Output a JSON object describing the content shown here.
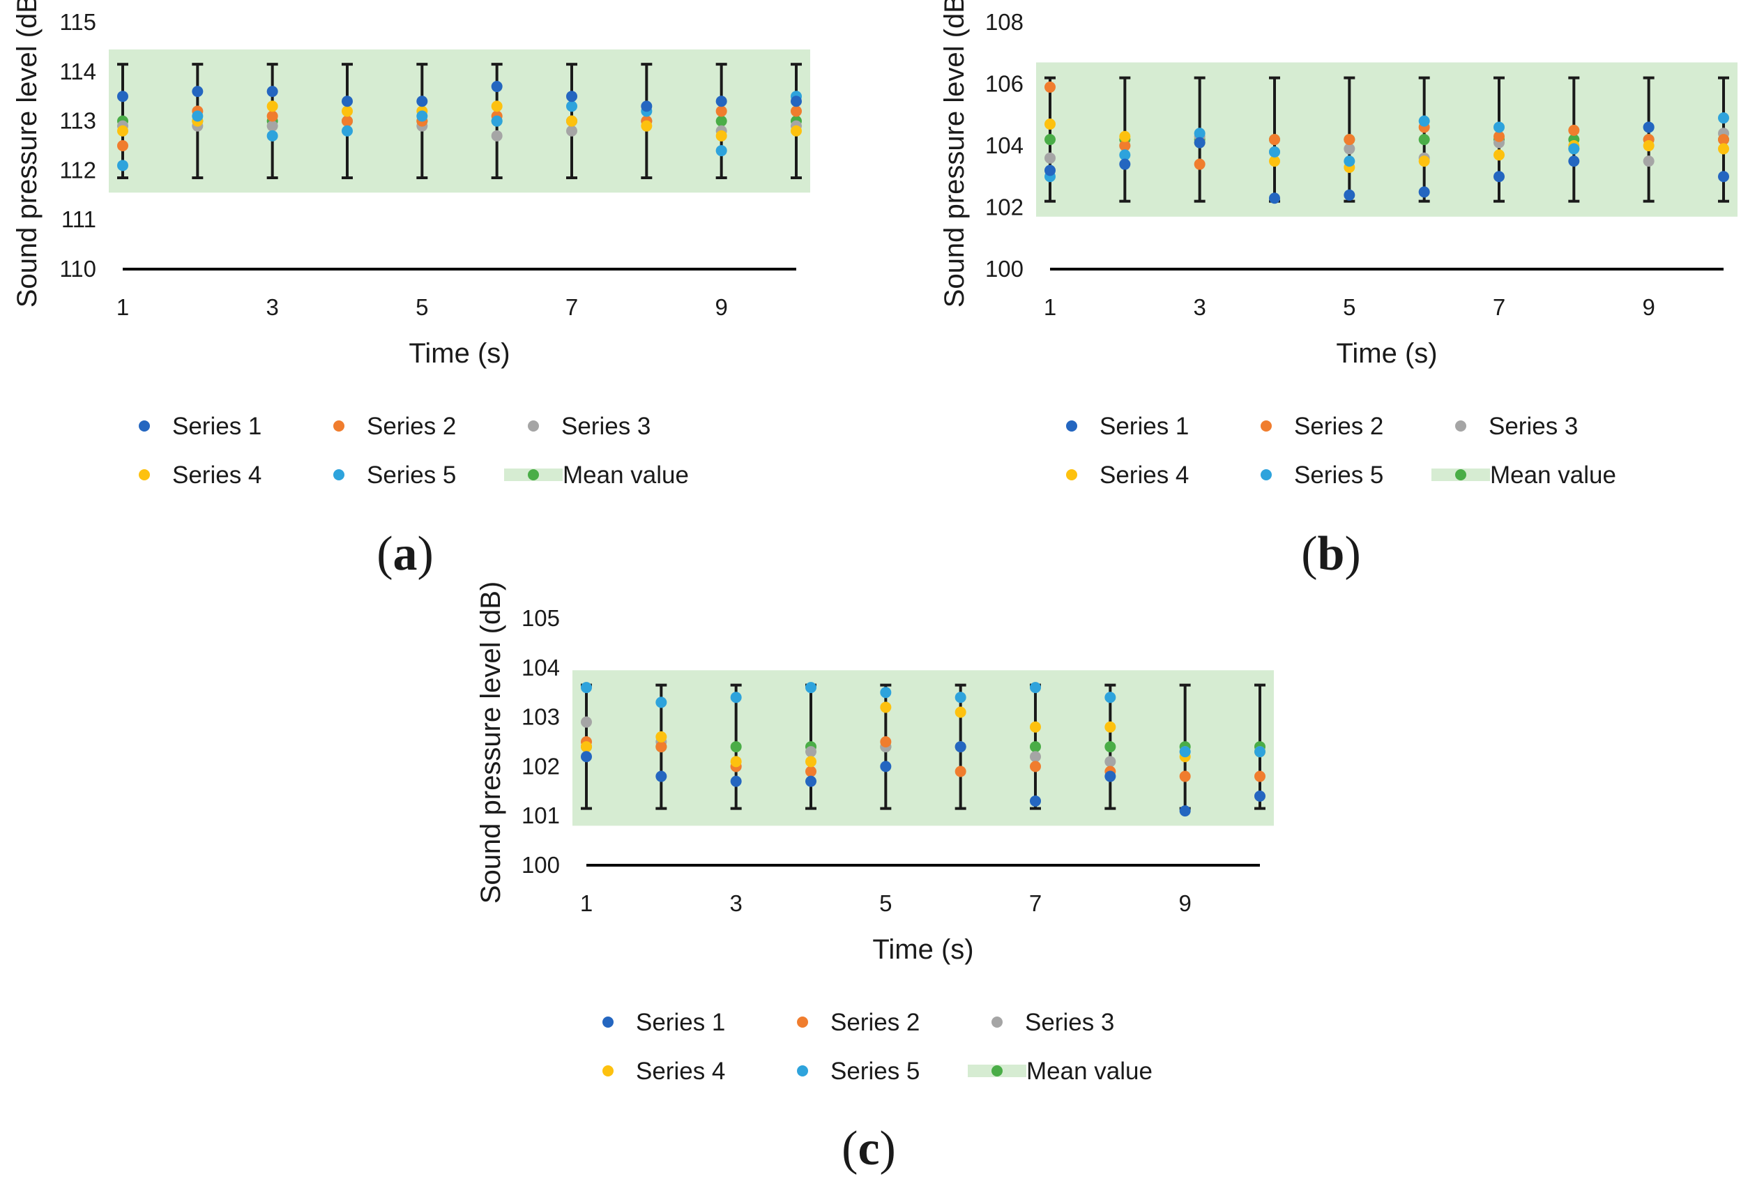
{
  "chart_data": [
    {
      "type": "scatter",
      "panel_label": "a",
      "xlabel": "Time (s)",
      "ylabel": "Sound pressure level (dB)",
      "ylim": [
        110,
        115
      ],
      "yticks": [
        110,
        111,
        112,
        113,
        114,
        115
      ],
      "xlim": [
        1,
        10
      ],
      "xticks": [
        1,
        3,
        5,
        7,
        9
      ],
      "band": [
        111.55,
        114.45
      ],
      "error_bar": {
        "low": 111.85,
        "high": 114.15
      },
      "x": [
        1,
        2,
        3,
        4,
        5,
        6,
        7,
        8,
        9,
        10
      ],
      "series": [
        {
          "name": "Series 1",
          "values": [
            113.5,
            113.6,
            113.6,
            113.4,
            113.4,
            113.7,
            113.5,
            113.3,
            113.4,
            113.4
          ]
        },
        {
          "name": "Series 2",
          "values": [
            112.5,
            113.2,
            113.1,
            113.0,
            113.0,
            113.1,
            113.0,
            113.0,
            113.2,
            113.2
          ]
        },
        {
          "name": "Series 3",
          "values": [
            112.9,
            112.9,
            112.9,
            113.0,
            112.9,
            112.7,
            112.8,
            113.0,
            112.8,
            112.9
          ]
        },
        {
          "name": "Series 4",
          "values": [
            112.8,
            113.0,
            113.3,
            113.2,
            113.2,
            113.3,
            113.0,
            112.9,
            112.7,
            112.8
          ]
        },
        {
          "name": "Series 5",
          "values": [
            112.1,
            113.1,
            112.7,
            112.8,
            113.1,
            113.0,
            113.3,
            113.2,
            112.4,
            113.5
          ]
        },
        {
          "name": "Mean value",
          "values": [
            113.0,
            113.0,
            113.0,
            113.0,
            113.0,
            113.0,
            113.0,
            113.0,
            113.0,
            113.0
          ]
        }
      ]
    },
    {
      "type": "scatter",
      "panel_label": "b",
      "xlabel": "Time (s)",
      "ylabel": "Sound pressure level (dB)",
      "ylim": [
        100,
        108
      ],
      "yticks": [
        100,
        102,
        104,
        106,
        108
      ],
      "xlim": [
        1,
        10
      ],
      "xticks": [
        1,
        3,
        5,
        7,
        9
      ],
      "band": [
        101.7,
        106.7
      ],
      "error_bar": {
        "low": 102.2,
        "high": 106.2
      },
      "x": [
        1,
        2,
        3,
        4,
        5,
        6,
        7,
        8,
        9,
        10
      ],
      "series": [
        {
          "name": "Series 1",
          "values": [
            103.2,
            103.4,
            104.1,
            102.3,
            102.4,
            102.5,
            103.0,
            103.5,
            104.6,
            103.0
          ]
        },
        {
          "name": "Series 2",
          "values": [
            105.9,
            104.0,
            103.4,
            104.2,
            104.2,
            104.6,
            104.3,
            104.5,
            104.2,
            104.2
          ]
        },
        {
          "name": "Series 3",
          "values": [
            103.6,
            104.0,
            104.3,
            103.8,
            103.9,
            103.6,
            104.1,
            103.9,
            103.5,
            104.4
          ]
        },
        {
          "name": "Series 4",
          "values": [
            104.7,
            104.3,
            104.1,
            103.5,
            103.3,
            103.5,
            103.7,
            104.0,
            104.0,
            103.9
          ]
        },
        {
          "name": "Series 5",
          "values": [
            103.0,
            103.7,
            104.4,
            103.8,
            103.5,
            104.8,
            104.6,
            103.9,
            104.6,
            104.9
          ]
        },
        {
          "name": "Mean value",
          "values": [
            104.2,
            104.2,
            104.2,
            104.2,
            104.2,
            104.2,
            104.2,
            104.2,
            104.2,
            104.2
          ]
        }
      ]
    },
    {
      "type": "scatter",
      "panel_label": "c",
      "xlabel": "Time (s)",
      "ylabel": "Sound pressure level (dB)",
      "ylim": [
        100,
        105
      ],
      "yticks": [
        100,
        101,
        102,
        103,
        104,
        105
      ],
      "xlim": [
        1,
        10
      ],
      "xticks": [
        1,
        3,
        5,
        7,
        9
      ],
      "band": [
        100.8,
        103.95
      ],
      "error_bar": {
        "low": 101.15,
        "high": 103.65
      },
      "x": [
        1,
        2,
        3,
        4,
        5,
        6,
        7,
        8,
        9,
        10
      ],
      "series": [
        {
          "name": "Series 1",
          "values": [
            102.2,
            101.8,
            101.7,
            101.7,
            102.0,
            102.4,
            101.3,
            101.8,
            101.1,
            101.4
          ]
        },
        {
          "name": "Series 2",
          "values": [
            102.5,
            102.4,
            102.0,
            101.9,
            102.5,
            101.9,
            102.0,
            101.9,
            101.8,
            101.8
          ]
        },
        {
          "name": "Series 3",
          "values": [
            102.9,
            102.5,
            102.0,
            102.3,
            102.4,
            102.4,
            102.2,
            102.1,
            102.3,
            102.3
          ]
        },
        {
          "name": "Series 4",
          "values": [
            102.4,
            102.6,
            102.1,
            102.1,
            103.2,
            103.1,
            102.8,
            102.8,
            102.2,
            102.3
          ]
        },
        {
          "name": "Series 5",
          "values": [
            103.6,
            103.3,
            103.4,
            103.6,
            103.5,
            103.4,
            103.6,
            103.4,
            102.3,
            102.3
          ]
        },
        {
          "name": "Mean value",
          "values": [
            102.4,
            102.4,
            102.4,
            102.4,
            102.4,
            102.4,
            102.4,
            102.4,
            102.4,
            102.4
          ]
        }
      ]
    }
  ],
  "colors": {
    "Series 1": "#2466c0",
    "Series 2": "#f07d2e",
    "Series 3": "#a5a5a5",
    "Series 4": "#fdc10f",
    "Series 5": "#2ea3dc",
    "Mean value": "#4aad47",
    "band": "#d6ecd2",
    "error_bar": "#1a1a1a",
    "axis": "#000000"
  }
}
